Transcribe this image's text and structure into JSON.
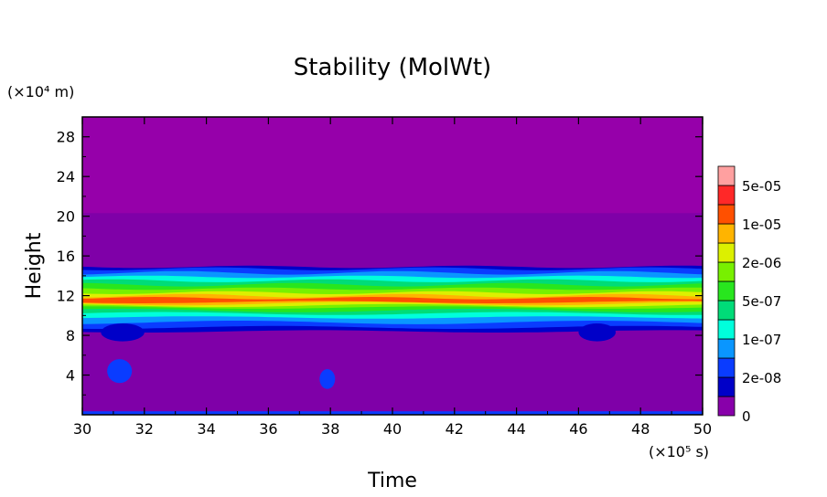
{
  "chart_data": {
    "type": "heatmap",
    "title": "Stability (MolWt)",
    "xlabel": "Time",
    "ylabel": "Height",
    "x_unit_label": "(×10⁵ s)",
    "y_unit_label": "(×10⁴ m)",
    "xlim": [
      30,
      50
    ],
    "ylim": [
      0,
      30
    ],
    "x_ticks": [
      30,
      32,
      34,
      36,
      38,
      40,
      42,
      44,
      46,
      48,
      50
    ],
    "y_ticks": [
      4,
      8,
      12,
      16,
      20,
      24,
      28
    ],
    "colorbar": {
      "levels": [
        0,
        1e-08,
        2e-08,
        5e-08,
        1e-07,
        2e-07,
        5e-07,
        1e-06,
        2e-06,
        5e-06,
        1e-05,
        2e-05,
        5e-05,
        0.0001
      ],
      "tick_labels": [
        "0",
        "2e-08",
        "1e-07",
        "5e-07",
        "2e-06",
        "1e-05",
        "5e-05"
      ],
      "colors": [
        "#8800aa",
        "#0000c8",
        "#0a3cff",
        "#0a96ff",
        "#00ffdc",
        "#00dc78",
        "#28e61e",
        "#78f000",
        "#dcf000",
        "#ffb400",
        "#ff5000",
        "#ff2828",
        "#ffa0a0"
      ]
    },
    "bands": [
      {
        "name": "upper-region",
        "level_index": 0,
        "ymin": 20.3,
        "ymax": 30,
        "color": "#9600aa"
      },
      {
        "name": "upper-mid-region",
        "level_index": 0,
        "ymin": 15,
        "ymax": 20.3,
        "color": "#7f00a8"
      },
      {
        "name": "lower-region",
        "level_index": 0,
        "ymin": 0,
        "ymax": 8.5,
        "color": "#7f00a8"
      },
      {
        "name": "layer-2e-08",
        "level_index": 1,
        "ymin": 8.4,
        "ymax": 14.9,
        "color": "#0000c8"
      },
      {
        "name": "layer-5e-08",
        "level_index": 2,
        "ymin": 8.8,
        "ymax": 14.7,
        "color": "#0a3cff"
      },
      {
        "name": "layer-1e-07",
        "level_index": 3,
        "ymin": 9.3,
        "ymax": 14.3,
        "color": "#0a96ff"
      },
      {
        "name": "layer-2e-07",
        "level_index": 4,
        "ymin": 9.8,
        "ymax": 13.9,
        "color": "#00ffdc"
      },
      {
        "name": "layer-5e-07",
        "level_index": 5,
        "ymin": 10.2,
        "ymax": 13.5,
        "color": "#00dc78"
      },
      {
        "name": "layer-1e-06",
        "level_index": 6,
        "ymin": 10.5,
        "ymax": 13.1,
        "color": "#28e61e"
      },
      {
        "name": "layer-2e-06",
        "level_index": 7,
        "ymin": 10.8,
        "ymax": 12.7,
        "color": "#78f000"
      },
      {
        "name": "layer-5e-06",
        "level_index": 8,
        "ymin": 11.0,
        "ymax": 12.3,
        "color": "#dcf000"
      },
      {
        "name": "layer-1e-05",
        "level_index": 9,
        "ymin": 11.2,
        "ymax": 12.0,
        "color": "#ffb400"
      },
      {
        "name": "layer-2e-05",
        "level_index": 10,
        "ymin": 11.35,
        "ymax": 11.75,
        "color": "#ff5000"
      },
      {
        "name": "surface-layer",
        "level_index": 2,
        "ymin": 0,
        "ymax": 0.35,
        "color": "#0a3cff"
      }
    ],
    "features": [
      {
        "name": "low-stability-patch-1",
        "x": 31.2,
        "y": 4.4,
        "rx": 0.4,
        "ry": 1.2,
        "color": "#0a3cff"
      },
      {
        "name": "low-stability-patch-2",
        "x": 37.9,
        "y": 3.6,
        "rx": 0.25,
        "ry": 1.0,
        "color": "#0a3cff"
      },
      {
        "name": "bulge-1",
        "x": 31.3,
        "y": 8.3,
        "rx": 0.7,
        "ry": 0.9,
        "color": "#0000c8"
      },
      {
        "name": "bulge-2",
        "x": 46.6,
        "y": 8.3,
        "rx": 0.6,
        "ry": 0.9,
        "color": "#0000c8"
      }
    ]
  }
}
